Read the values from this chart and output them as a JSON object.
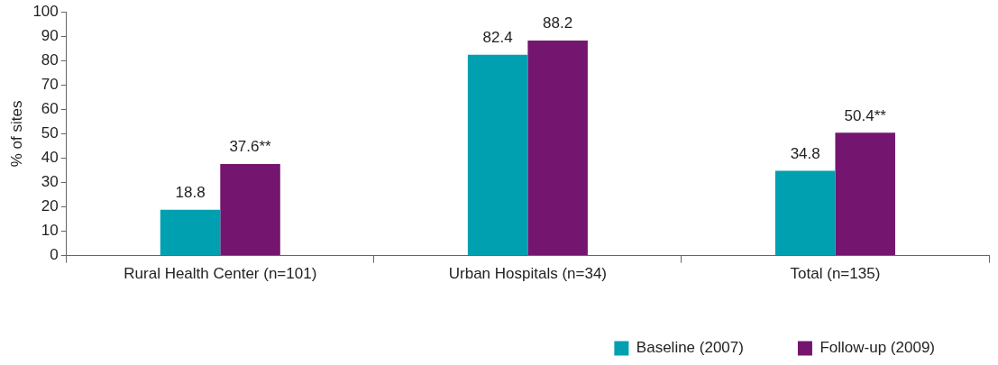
{
  "chart_data": {
    "type": "bar",
    "ylabel": "% of sites",
    "categories": [
      "Rural Health Center (n=101)",
      "Urban Hospitals (n=34)",
      "Total (n=135)"
    ],
    "series": [
      {
        "name": "Baseline (2007)",
        "color": "#00a0b0",
        "values": [
          18.8,
          82.4,
          34.8
        ],
        "value_labels": [
          "18.8",
          "82.4",
          "34.8"
        ]
      },
      {
        "name": "Follow-up (2009)",
        "color": "#74156f",
        "values": [
          37.6,
          88.2,
          50.4
        ],
        "value_labels": [
          "37.6**",
          "88.2",
          "50.4**"
        ]
      }
    ],
    "ylim": [
      0,
      100
    ],
    "yticks": [
      0,
      10,
      20,
      30,
      40,
      50,
      60,
      70,
      80,
      90,
      100
    ],
    "grid": false,
    "legend": "bottom right"
  }
}
